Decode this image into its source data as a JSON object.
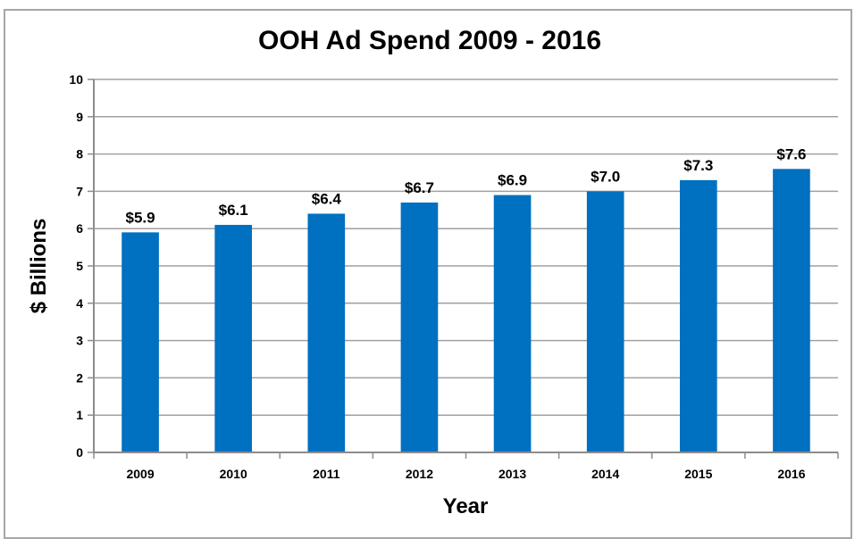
{
  "chart_data": {
    "type": "bar",
    "title": "OOH Ad Spend 2009 - 2016",
    "xlabel": "Year",
    "ylabel": "$ Billions",
    "categories": [
      "2009",
      "2010",
      "2011",
      "2012",
      "2013",
      "2014",
      "2015",
      "2016"
    ],
    "values": [
      5.9,
      6.1,
      6.4,
      6.7,
      6.9,
      7.0,
      7.3,
      7.6
    ],
    "data_labels": [
      "$5.9",
      "$6.1",
      "$6.4",
      "$6.7",
      "$6.9",
      "$7.0",
      "$7.3",
      "$7.6"
    ],
    "ylim": [
      0,
      10
    ],
    "yticks": [
      0,
      1,
      2,
      3,
      4,
      5,
      6,
      7,
      8,
      9,
      10
    ],
    "grid": true,
    "legend": "none",
    "bar_color": "#0070C0",
    "grid_color": "#a0a0a0"
  }
}
